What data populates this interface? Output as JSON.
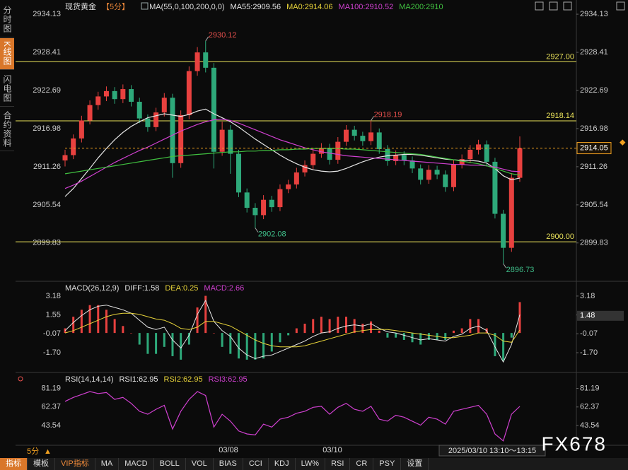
{
  "ui": {
    "sidebar": [
      "分时图",
      "K线图",
      "闪电图",
      "合约资料"
    ],
    "period": "5分",
    "dates": [
      "03/08",
      "03/10"
    ],
    "time_range": "2025/03/10 13:10～13:15",
    "watermark": "FX678",
    "toolbar": [
      "指标",
      "模板",
      "VIP指标",
      "MA",
      "MACD",
      "BOLL",
      "VOL",
      "BIAS",
      "CCI",
      "KDJ",
      "LW%",
      "RSI",
      "CR",
      "PSY",
      "设置"
    ]
  },
  "chart_data": [
    {
      "type": "candlestick",
      "title": "现货黄金",
      "period_label": "【5分】",
      "indicator": "MA(55,0,100,200,0,0)",
      "ylim": [
        2894.4,
        2934.35
      ],
      "yticks": [
        2934.13,
        2928.41,
        2922.69,
        2916.98,
        2911.26,
        2905.54,
        2899.83
      ],
      "up_color": "#e8413f",
      "down_color": "#2ea97a",
      "levels": [
        {
          "value": 2927,
          "label": "2927.00"
        },
        2918.14,
        {
          "value": 2900,
          "label": "2900.00"
        }
      ],
      "level_color": "#e8e05a",
      "highs": [
        2930.12,
        2918.19
      ],
      "lows": [
        2902.08,
        2896.73
      ],
      "high_color": "#e8504d",
      "low_color": "#3fbf8a",
      "last_price": 2914.05,
      "last_color": "#f0a020",
      "candles": [
        [
          2912.2,
          2913.8,
          2911.3,
          2913.0
        ],
        [
          2913.0,
          2916.1,
          2912.4,
          2915.5
        ],
        [
          2915.5,
          2918.9,
          2914.9,
          2918.2
        ],
        [
          2918.2,
          2921.2,
          2917.6,
          2920.5
        ],
        [
          2920.5,
          2922.5,
          2919.8,
          2921.8
        ],
        [
          2921.8,
          2923.3,
          2921.1,
          2922.6
        ],
        [
          2922.6,
          2923.2,
          2920.7,
          2921.4
        ],
        [
          2921.4,
          2923.6,
          2920.8,
          2922.9
        ],
        [
          2922.9,
          2923.5,
          2920.3,
          2921.0
        ],
        [
          2921.0,
          2921.6,
          2917.8,
          2918.5
        ],
        [
          2918.5,
          2919.1,
          2916.5,
          2917.2
        ],
        [
          2917.2,
          2920.1,
          2916.6,
          2919.4
        ],
        [
          2919.4,
          2922.3,
          2918.8,
          2921.6
        ],
        [
          2921.6,
          2922.2,
          2909.6,
          2911.8
        ],
        [
          2911.8,
          2919.7,
          2911.1,
          2919.0
        ],
        [
          2919.0,
          2926.3,
          2918.4,
          2925.6
        ],
        [
          2925.6,
          2929.2,
          2924.9,
          2928.4
        ],
        [
          2928.4,
          2930.12,
          2925.4,
          2926.1
        ],
        [
          2926.1,
          2926.8,
          2911.0,
          2913.5
        ],
        [
          2913.5,
          2918.0,
          2912.9,
          2916.8
        ],
        [
          2916.8,
          2917.5,
          2910.2,
          2913.2
        ],
        [
          2913.2,
          2913.8,
          2906.7,
          2907.4
        ],
        [
          2907.4,
          2908.0,
          2904.4,
          2905.1
        ],
        [
          2905.1,
          2905.8,
          2902.08,
          2904.0
        ],
        [
          2904.0,
          2907.0,
          2903.4,
          2906.3
        ],
        [
          2906.3,
          2906.9,
          2904.5,
          2905.2
        ],
        [
          2905.2,
          2908.6,
          2904.6,
          2907.9
        ],
        [
          2907.9,
          2909.3,
          2907.3,
          2908.6
        ],
        [
          2908.6,
          2911.1,
          2908.0,
          2910.4
        ],
        [
          2910.4,
          2912.2,
          2909.8,
          2911.5
        ],
        [
          2911.5,
          2913.9,
          2910.9,
          2913.2
        ],
        [
          2913.2,
          2914.8,
          2912.6,
          2914.1
        ],
        [
          2914.1,
          2914.7,
          2911.6,
          2912.3
        ],
        [
          2912.3,
          2915.7,
          2911.7,
          2915.0
        ],
        [
          2915.0,
          2917.5,
          2914.4,
          2916.8
        ],
        [
          2916.8,
          2917.4,
          2915.2,
          2915.9
        ],
        [
          2915.9,
          2916.5,
          2914.4,
          2915.1
        ],
        [
          2915.1,
          2918.19,
          2914.5,
          2916.4
        ],
        [
          2916.4,
          2917.0,
          2913.2,
          2913.9
        ],
        [
          2913.9,
          2914.5,
          2911.4,
          2912.1
        ],
        [
          2912.1,
          2913.7,
          2911.5,
          2913.0
        ],
        [
          2913.0,
          2913.6,
          2911.5,
          2912.2
        ],
        [
          2912.2,
          2912.8,
          2910.3,
          2911.0
        ],
        [
          2911.0,
          2911.6,
          2908.6,
          2909.3
        ],
        [
          2909.3,
          2911.5,
          2908.7,
          2910.8
        ],
        [
          2910.8,
          2911.4,
          2909.4,
          2910.1
        ],
        [
          2910.1,
          2910.7,
          2907.5,
          2908.2
        ],
        [
          2908.2,
          2912.3,
          2907.6,
          2911.6
        ],
        [
          2911.6,
          2913.1,
          2911.0,
          2912.4
        ],
        [
          2912.4,
          2914.5,
          2911.8,
          2913.8
        ],
        [
          2913.8,
          2915.3,
          2913.1,
          2914.6
        ],
        [
          2914.6,
          2915.2,
          2911.3,
          2912.0
        ],
        [
          2912.0,
          2912.6,
          2903.5,
          2904.2
        ],
        [
          2904.2,
          2904.8,
          2896.73,
          2899.1
        ],
        [
          2899.1,
          2910.3,
          2898.5,
          2909.6
        ],
        [
          2909.6,
          2915.8,
          2909.0,
          2914.05
        ]
      ],
      "legend": [
        {
          "label": "MA55:2909.56",
          "color": "#e6e6e6"
        },
        {
          "label": "MA0:2914.06",
          "color": "#e8d43a"
        },
        {
          "label": "MA100:2910.52",
          "color": "#d040d0"
        },
        {
          "label": "MA200:2910",
          "color": "#40c040"
        }
      ],
      "series": [
        {
          "color": "#e6e6e6",
          "values": [
            2906.8,
            2908.0,
            2909.5,
            2911.0,
            2912.6,
            2914.0,
            2915.3,
            2916.4,
            2917.3,
            2918.0,
            2918.6,
            2918.9,
            2919.2,
            2919.0,
            2918.8,
            2919.1,
            2919.6,
            2919.9,
            2919.2,
            2918.6,
            2918.0,
            2917.2,
            2916.3,
            2915.4,
            2914.6,
            2913.8,
            2913.0,
            2912.3,
            2911.7,
            2911.2,
            2910.8,
            2910.6,
            2910.5,
            2910.6,
            2911.0,
            2911.5,
            2912.0,
            2912.4,
            2912.7,
            2912.9,
            2913.0,
            2913.1,
            2913.1,
            2913.0,
            2912.8,
            2912.6,
            2912.4,
            2912.3,
            2912.2,
            2912.2,
            2912.1,
            2911.8,
            2911.0,
            2909.9,
            2909.3,
            2909.56
          ]
        },
        {
          "color": "#d040d0",
          "values": [
            2908.0,
            2908.5,
            2909.1,
            2909.8,
            2910.5,
            2911.2,
            2911.9,
            2912.5,
            2913.1,
            2913.7,
            2914.2,
            2914.8,
            2915.4,
            2916.0,
            2916.6,
            2917.1,
            2917.6,
            2918.0,
            2918.3,
            2918.4,
            2918.2,
            2917.8,
            2917.3,
            2916.8,
            2916.3,
            2915.8,
            2915.3,
            2914.9,
            2914.5,
            2914.1,
            2913.8,
            2913.5,
            2913.3,
            2913.1,
            2912.9,
            2912.8,
            2912.7,
            2912.6,
            2912.5,
            2912.4,
            2912.3,
            2912.2,
            2912.1,
            2912.0,
            2911.9,
            2911.8,
            2911.7,
            2911.6,
            2911.6,
            2911.5,
            2911.5,
            2911.4,
            2911.2,
            2910.9,
            2910.6,
            2910.52
          ]
        },
        {
          "color": "#40c040",
          "values": [
            2910.2,
            2910.4,
            2910.6,
            2910.8,
            2911.0,
            2911.2,
            2911.4,
            2911.6,
            2911.8,
            2912.0,
            2912.2,
            2912.4,
            2912.6,
            2912.8,
            2912.9,
            2913.0,
            2913.1,
            2913.2,
            2913.3,
            2913.4,
            2913.5,
            2913.5,
            2913.6,
            2913.6,
            2913.7,
            2913.7,
            2913.8,
            2913.8,
            2913.9,
            2913.9,
            2914.0,
            2914.0,
            2914.0,
            2914.0,
            2913.9,
            2913.9,
            2913.8,
            2913.7,
            2913.6,
            2913.5,
            2913.4,
            2913.3,
            2913.2,
            2913.1,
            2912.9,
            2912.7,
            2912.5,
            2912.3,
            2912.1,
            2911.9,
            2911.7,
            2911.4,
            2911.0,
            2910.6,
            2910.2,
            2910
          ]
        }
      ]
    },
    {
      "type": "macd",
      "title": "MACD(26,12,9)",
      "ylim": [
        -2.55,
        3.6
      ],
      "yticks": [
        3.18,
        1.55,
        -0.07,
        {
          "value": -1.7,
          "label": "-1.70"
        }
      ],
      "last_marker": 1.48,
      "legend": [
        {
          "label": "DIFF:1.58",
          "color": "#e6e6e6"
        },
        {
          "label": "DEA:0.25",
          "color": "#e8d43a"
        },
        {
          "label": "MACD:2.66",
          "color": "#d040d0"
        }
      ],
      "series": [
        {
          "color": "#e6e6e6",
          "values": [
            0.2,
            0.9,
            1.5,
            2.0,
            2.3,
            2.4,
            2.2,
            2.0,
            1.7,
            1.1,
            0.5,
            0.3,
            0.5,
            -0.6,
            -1.3,
            -0.2,
            1.6,
            2.8,
            1.0,
            0.2,
            -0.3,
            -1.3,
            -1.9,
            -2.2,
            -2.0,
            -1.9,
            -1.6,
            -1.3,
            -1.0,
            -0.7,
            -0.3,
            0.0,
            0.1,
            0.4,
            0.6,
            0.7,
            0.6,
            0.8,
            0.4,
            0.1,
            0.0,
            -0.2,
            -0.4,
            -0.6,
            -0.5,
            -0.6,
            -0.7,
            -0.3,
            -0.1,
            0.4,
            0.6,
            0.2,
            -1.2,
            -2.5,
            -1.0,
            1.58
          ]
        },
        {
          "color": "#e8d43a",
          "values": [
            0.0,
            0.2,
            0.5,
            0.8,
            1.1,
            1.4,
            1.6,
            1.7,
            1.7,
            1.6,
            1.4,
            1.2,
            1.1,
            0.8,
            0.4,
            0.3,
            0.5,
            1.0,
            1.0,
            0.8,
            0.6,
            0.2,
            -0.2,
            -0.6,
            -0.9,
            -1.1,
            -1.2,
            -1.2,
            -1.2,
            -1.1,
            -0.9,
            -0.7,
            -0.5,
            -0.3,
            -0.1,
            0.1,
            0.2,
            0.3,
            0.3,
            0.3,
            0.2,
            0.1,
            0.0,
            -0.1,
            -0.2,
            -0.3,
            -0.4,
            -0.4,
            -0.3,
            -0.2,
            0.0,
            0.0,
            -0.2,
            -0.7,
            -0.8,
            0.25
          ]
        }
      ],
      "histogram": {
        "up_color": "#e8413f",
        "down_color": "#2ea97a",
        "values": [
          0.4,
          1.4,
          2.0,
          2.4,
          2.4,
          2.0,
          1.2,
          0.6,
          0.0,
          -1.0,
          -1.8,
          -1.8,
          -1.2,
          -2.0,
          -2.3,
          -1.0,
          2.2,
          3.2,
          0.0,
          -1.2,
          -1.8,
          -2.2,
          -2.3,
          -2.3,
          -2.2,
          -1.6,
          -0.8,
          -0.2,
          0.4,
          0.8,
          1.2,
          1.4,
          1.2,
          1.4,
          1.4,
          1.2,
          0.8,
          1.0,
          0.2,
          -0.4,
          -0.4,
          -0.6,
          -0.8,
          -1.0,
          -0.6,
          -0.6,
          -0.6,
          0.2,
          0.4,
          1.2,
          1.2,
          0.4,
          -2.0,
          -2.4,
          -0.4,
          2.66
        ]
      }
    },
    {
      "type": "line",
      "title": "RSI(14,14,14)",
      "ylim": [
        25,
        88
      ],
      "yticks": [
        81.19,
        62.37,
        43.54
      ],
      "legend": [
        {
          "label": "RSI1:62.95",
          "color": "#e6e6e6"
        },
        {
          "label": "RSI2:62.95",
          "color": "#e8d43a"
        },
        {
          "label": "RSI3:62.95",
          "color": "#d040d0"
        }
      ],
      "series": [
        {
          "color": "#d040d0",
          "values": [
            68,
            72,
            75,
            78,
            76,
            77,
            70,
            72,
            66,
            58,
            55,
            60,
            64,
            40,
            58,
            70,
            78,
            74,
            42,
            55,
            48,
            38,
            35,
            34,
            45,
            42,
            50,
            52,
            56,
            58,
            62,
            63,
            55,
            62,
            66,
            60,
            58,
            63,
            50,
            48,
            54,
            52,
            48,
            44,
            52,
            50,
            45,
            58,
            60,
            62,
            64,
            55,
            35,
            28,
            55,
            62.95
          ]
        }
      ]
    }
  ]
}
